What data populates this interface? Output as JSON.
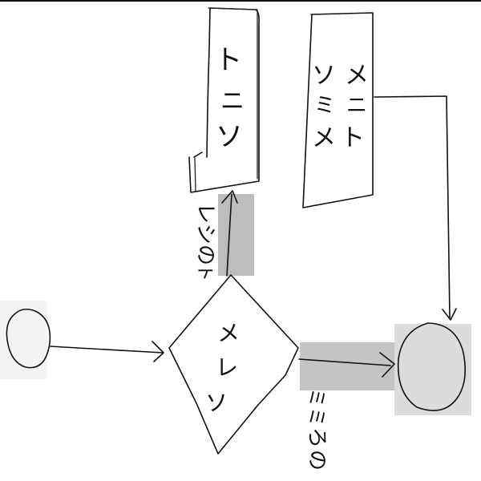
{
  "nodes": {
    "box_top_left": {
      "lines": [
        "ト",
        "ニ",
        "ソ"
      ]
    },
    "box_top_right": {
      "col1": [
        "ソ",
        "ミ",
        "メ"
      ],
      "col2": [
        "メ",
        "ニ",
        "ト"
      ]
    },
    "decision": {
      "lines": [
        "メ",
        "レ",
        "ソ"
      ]
    }
  },
  "labels": {
    "upper_edge": [
      "レ",
      "シ",
      "の",
      "ト"
    ],
    "right_edge": [
      "ミ",
      "ミ",
      "ろ",
      "の"
    ]
  },
  "colors": {
    "ink": "#111111",
    "highlight_strong": "#b8b8b8",
    "highlight_light": "#d9d9d9",
    "start_fill": "#f2f2f2"
  }
}
